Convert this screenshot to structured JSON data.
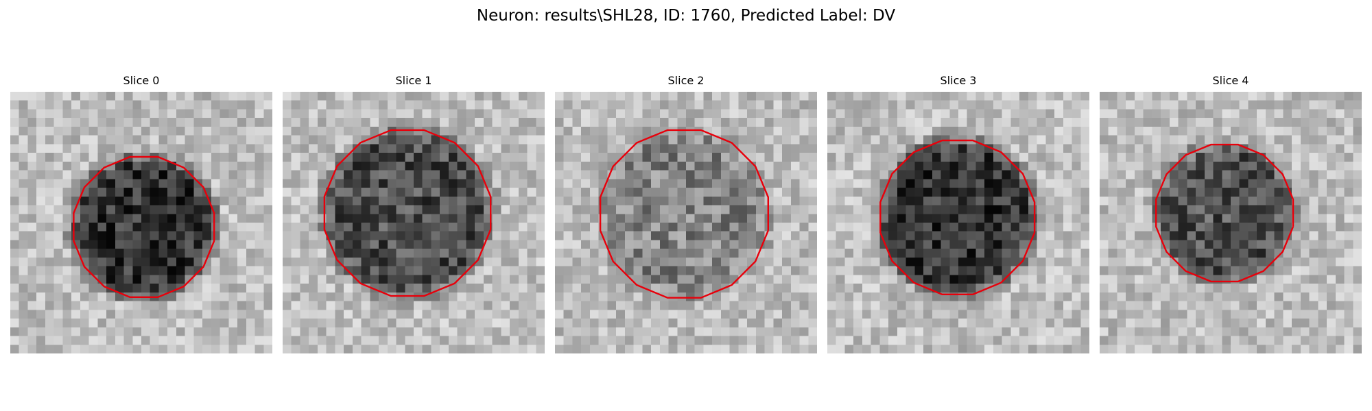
{
  "figure": {
    "title": "Neuron: results\\SHL28, ID: 1760, Predicted Label: DV"
  },
  "panels": [
    {
      "title": "Slice 0"
    },
    {
      "title": "Slice 1"
    },
    {
      "title": "Slice 2"
    },
    {
      "title": "Slice 3"
    },
    {
      "title": "Slice 4"
    }
  ],
  "colors": {
    "contour": "#e8000b",
    "colormap": "grayscale"
  },
  "image_grid": "30x30 grayscale pixels per slice"
}
